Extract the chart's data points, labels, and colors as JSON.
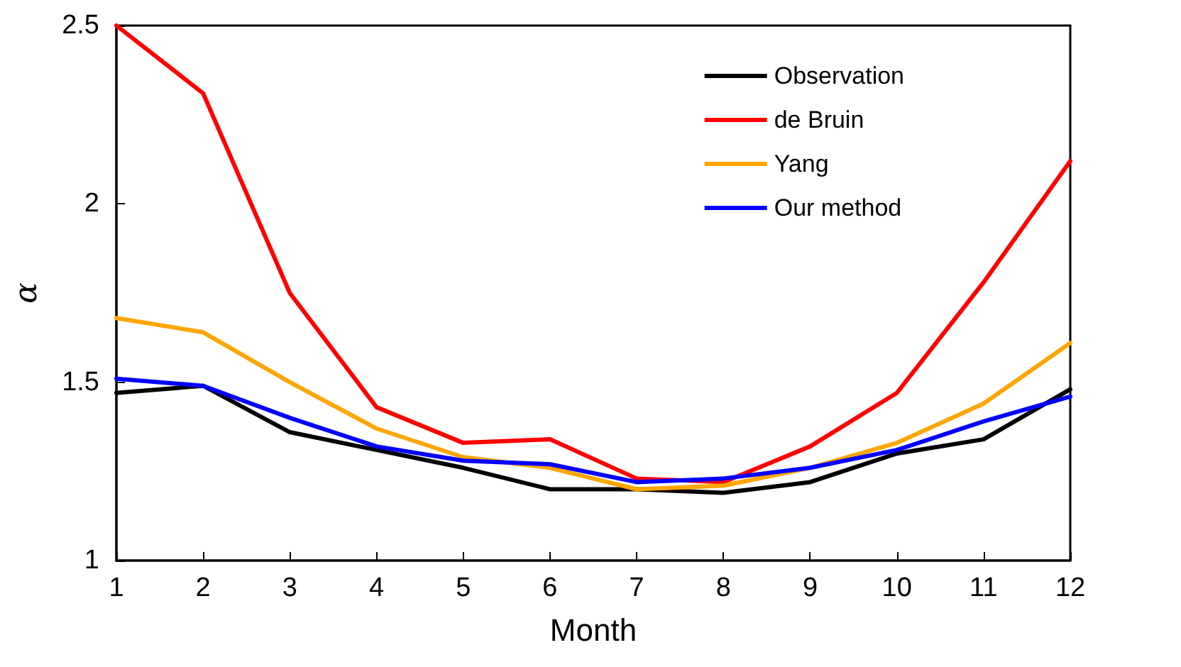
{
  "chart_data": {
    "type": "line",
    "xlabel": "Month",
    "ylabel": "α",
    "x": [
      1,
      2,
      3,
      4,
      5,
      6,
      7,
      8,
      9,
      10,
      11,
      12
    ],
    "xlim": [
      1,
      12
    ],
    "xticks": [
      1,
      2,
      3,
      4,
      5,
      6,
      7,
      8,
      9,
      10,
      11,
      12
    ],
    "ylim": [
      1,
      2.5
    ],
    "yticks": [
      1,
      1.5,
      2,
      2.5
    ],
    "grid": false,
    "legend": "top right",
    "marker": "none",
    "line_style": "solid",
    "series": [
      {
        "name": "Observation",
        "color": "#000000",
        "values": [
          1.47,
          1.49,
          1.36,
          1.31,
          1.26,
          1.2,
          1.2,
          1.19,
          1.22,
          1.3,
          1.34,
          1.48
        ]
      },
      {
        "name": "de Bruin",
        "color": "#ff0000",
        "values": [
          2.5,
          2.31,
          1.75,
          1.43,
          1.33,
          1.34,
          1.23,
          1.22,
          1.32,
          1.47,
          1.78,
          2.12
        ]
      },
      {
        "name": "Yang",
        "color": "#ffa500",
        "values": [
          1.68,
          1.64,
          1.5,
          1.37,
          1.29,
          1.26,
          1.2,
          1.21,
          1.26,
          1.33,
          1.44,
          1.61
        ]
      },
      {
        "name": "Our method",
        "color": "#0000ff",
        "values": [
          1.51,
          1.49,
          1.4,
          1.32,
          1.28,
          1.27,
          1.22,
          1.23,
          1.26,
          1.31,
          1.39,
          1.46
        ]
      }
    ]
  }
}
